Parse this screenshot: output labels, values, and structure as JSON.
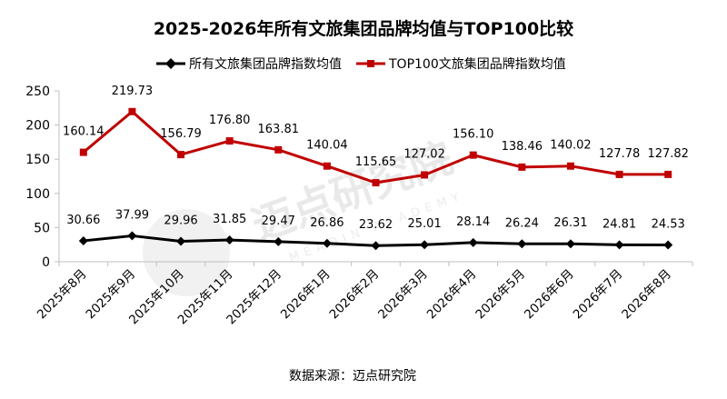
{
  "chart_data": {
    "type": "line",
    "title": "2025-2026年所有文旅集团品牌均值与TOP100比较",
    "categories": [
      "2025年8月",
      "2025年9月",
      "2025年10月",
      "2025年11月",
      "2025年12月",
      "2026年1月",
      "2026年2月",
      "2026年3月",
      "2026年4月",
      "2026年5月",
      "2026年6月",
      "2026年7月",
      "2026年8月"
    ],
    "series": [
      {
        "name": "所有文旅集团品牌指数均值",
        "color": "#000000",
        "values": [
          30.66,
          37.99,
          29.96,
          31.85,
          29.47,
          26.86,
          23.62,
          25.01,
          28.14,
          26.24,
          26.31,
          24.81,
          24.53
        ],
        "labels": [
          "30.66",
          "37.99",
          "29.96",
          "31.85",
          "29.47",
          "26.86",
          "23.62",
          "25.01",
          "28.14",
          "26.24",
          "26.31",
          "24.81",
          "24.53"
        ]
      },
      {
        "name": "TOP100文旅集团品牌指数均值",
        "color": "#c00000",
        "values": [
          160.14,
          219.73,
          156.79,
          176.8,
          163.81,
          140.04,
          115.65,
          127.02,
          156.1,
          138.46,
          140.02,
          127.78,
          127.82
        ],
        "labels": [
          "160.14",
          "219.73",
          "156.79",
          "176.80",
          "163.81",
          "140.04",
          "115.65",
          "127.02",
          "156.10",
          "138.46",
          "140.02",
          "127.78",
          "127.82"
        ]
      }
    ],
    "ylim": [
      0,
      250
    ],
    "yticks": [
      "0",
      "50",
      "100",
      "150",
      "200",
      "250"
    ],
    "grid": false,
    "legend": "top"
  },
  "source": "数据来源：迈点研究院",
  "watermark": {
    "text": "迈点研究院",
    "sub": "MEADIN ACADEMY"
  }
}
